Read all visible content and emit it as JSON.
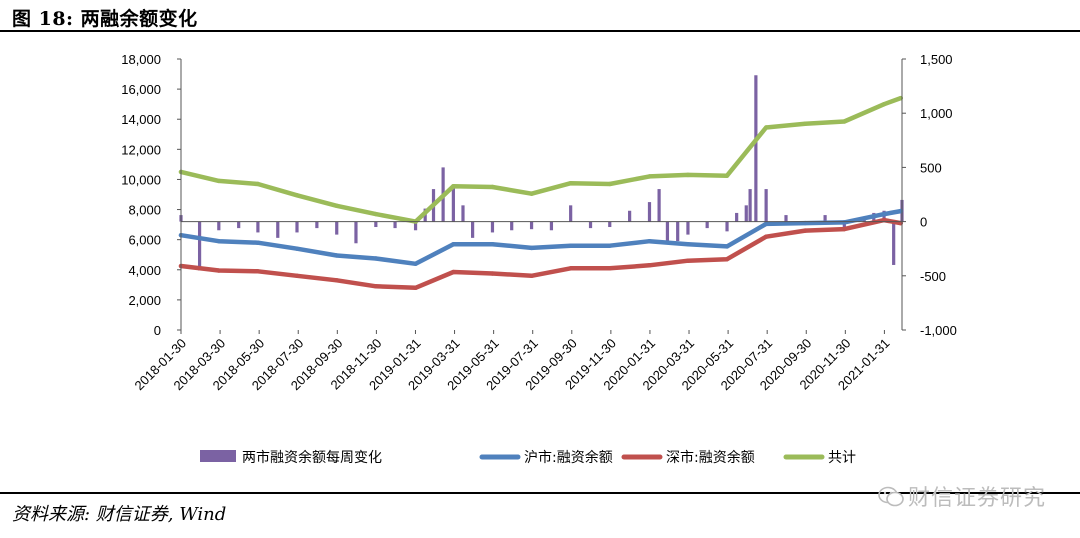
{
  "header": {
    "title": "图 18:  两融余额变化"
  },
  "footer": {
    "source": "资料来源: 财信证券, Wind",
    "watermark": "财信证券研究"
  },
  "chart_data": {
    "type": "line",
    "title": "",
    "xlabel": "",
    "ylabel": "",
    "ylim": [
      0,
      18000
    ],
    "ylim_right": [
      -1000,
      1500
    ],
    "y_ticks_left": [
      "18,000",
      "16,000",
      "14,000",
      "12,000",
      "10,000",
      "8,000",
      "6,000",
      "4,000",
      "2,000",
      "0"
    ],
    "y_ticks_right": [
      "1,500",
      "1,000",
      "500",
      "0",
      "-500",
      "-1,000"
    ],
    "x_ticks": [
      "2018-01-30",
      "2018-03-30",
      "2018-05-30",
      "2018-07-30",
      "2018-09-30",
      "2018-11-30",
      "2019-01-31",
      "2019-03-31",
      "2019-05-31",
      "2019-07-31",
      "2019-09-30",
      "2019-11-30",
      "2020-01-31",
      "2020-03-31",
      "2020-05-31",
      "2020-07-31",
      "2020-09-30",
      "2020-11-30",
      "2021-01-31"
    ],
    "legend_position": "bottom",
    "series": [
      {
        "name": "两市融资余额每周变化",
        "axis": "right",
        "kind": "bar",
        "color": "#7b62a3",
        "x": [
          "2018-01-30",
          "2018-02-28",
          "2018-03-30",
          "2018-04-30",
          "2018-05-30",
          "2018-06-30",
          "2018-07-30",
          "2018-08-30",
          "2018-09-30",
          "2018-10-30",
          "2018-11-30",
          "2018-12-30",
          "2019-01-31",
          "2019-02-15",
          "2019-02-28",
          "2019-03-15",
          "2019-03-31",
          "2019-04-15",
          "2019-04-30",
          "2019-05-31",
          "2019-06-30",
          "2019-07-31",
          "2019-08-31",
          "2019-09-30",
          "2019-10-31",
          "2019-11-30",
          "2019-12-31",
          "2020-01-31",
          "2020-02-15",
          "2020-02-28",
          "2020-03-15",
          "2020-03-31",
          "2020-04-30",
          "2020-05-31",
          "2020-06-15",
          "2020-06-30",
          "2020-07-06",
          "2020-07-15",
          "2020-07-31",
          "2020-08-31",
          "2020-09-30",
          "2020-10-31",
          "2020-11-30",
          "2020-12-31",
          "2021-01-15",
          "2021-01-31",
          "2021-02-15",
          "2021-02-28"
        ],
        "values": [
          60,
          -450,
          -80,
          -60,
          -100,
          -150,
          -100,
          -60,
          -120,
          -200,
          -50,
          -60,
          -80,
          120,
          300,
          500,
          320,
          150,
          -150,
          -100,
          -80,
          -70,
          -80,
          150,
          -60,
          -50,
          100,
          180,
          300,
          -200,
          -180,
          -120,
          -60,
          -90,
          80,
          150,
          300,
          1350,
          300,
          60,
          -30,
          60,
          -70,
          30,
          80,
          100,
          -400,
          200
        ]
      },
      {
        "name": "沪市:融资余额",
        "axis": "left",
        "kind": "line",
        "color": "#4f81bd",
        "x": [
          "2018-01-30",
          "2018-03-30",
          "2018-05-30",
          "2018-07-30",
          "2018-09-30",
          "2018-11-30",
          "2019-01-31",
          "2019-03-31",
          "2019-05-31",
          "2019-07-31",
          "2019-09-30",
          "2019-11-30",
          "2020-01-31",
          "2020-03-31",
          "2020-05-31",
          "2020-07-31",
          "2020-09-30",
          "2020-11-30",
          "2021-01-31",
          "2021-02-26"
        ],
        "values": [
          6300,
          5900,
          5800,
          5400,
          4950,
          4750,
          4400,
          5700,
          5700,
          5450,
          5600,
          5600,
          5900,
          5700,
          5550,
          7050,
          7100,
          7150,
          7700,
          7900
        ]
      },
      {
        "name": "深市:融资余额",
        "axis": "left",
        "kind": "line",
        "color": "#c0504d",
        "x": [
          "2018-01-30",
          "2018-03-30",
          "2018-05-30",
          "2018-07-30",
          "2018-09-30",
          "2018-11-30",
          "2019-01-31",
          "2019-03-31",
          "2019-05-31",
          "2019-07-31",
          "2019-09-30",
          "2019-11-30",
          "2020-01-31",
          "2020-03-31",
          "2020-05-31",
          "2020-07-31",
          "2020-09-30",
          "2020-11-30",
          "2021-01-31",
          "2021-02-26"
        ],
        "values": [
          4250,
          3950,
          3900,
          3600,
          3300,
          2900,
          2800,
          3850,
          3750,
          3600,
          4100,
          4100,
          4300,
          4600,
          4700,
          6200,
          6600,
          6700,
          7300,
          7100
        ]
      },
      {
        "name": "共计",
        "axis": "left",
        "kind": "line",
        "color": "#9bbb59",
        "x": [
          "2018-01-30",
          "2018-03-30",
          "2018-05-30",
          "2018-07-30",
          "2018-09-30",
          "2018-11-30",
          "2019-01-31",
          "2019-03-31",
          "2019-05-31",
          "2019-07-31",
          "2019-09-30",
          "2019-11-30",
          "2020-01-31",
          "2020-03-31",
          "2020-05-31",
          "2020-07-31",
          "2020-09-30",
          "2020-11-30",
          "2021-01-31",
          "2021-02-26"
        ],
        "values": [
          10500,
          9900,
          9700,
          8950,
          8250,
          7700,
          7200,
          9550,
          9500,
          9050,
          9750,
          9700,
          10200,
          10300,
          10250,
          13450,
          13700,
          13850,
          15000,
          15400
        ]
      }
    ]
  }
}
